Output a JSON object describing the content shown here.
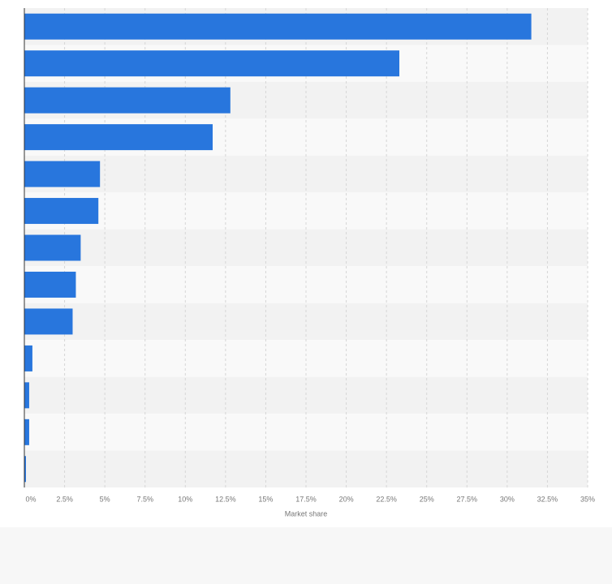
{
  "chart_data": {
    "type": "bar",
    "orientation": "horizontal",
    "categories": [
      null,
      null,
      null,
      null,
      null,
      null,
      null,
      null,
      null,
      null,
      null,
      null,
      null
    ],
    "values": [
      31.5,
      23.3,
      12.8,
      11.7,
      4.7,
      4.6,
      3.5,
      3.2,
      3.0,
      0.5,
      0.3,
      0.3,
      0.1
    ],
    "color": "#2876dd",
    "xlabel": "Market share",
    "xlim": [
      0,
      35
    ],
    "xticks": [
      {
        "value": 0,
        "label": "0%"
      },
      {
        "value": 2.5,
        "label": "2.5%"
      },
      {
        "value": 5,
        "label": "5%"
      },
      {
        "value": 7.5,
        "label": "7.5%"
      },
      {
        "value": 10,
        "label": "10%"
      },
      {
        "value": 12.5,
        "label": "12.5%"
      },
      {
        "value": 15,
        "label": "15%"
      },
      {
        "value": 17.5,
        "label": "17.5%"
      },
      {
        "value": 20,
        "label": "20%"
      },
      {
        "value": 22.5,
        "label": "22.5%"
      },
      {
        "value": 25,
        "label": "25%"
      },
      {
        "value": 27.5,
        "label": "27.5%"
      },
      {
        "value": 30,
        "label": "30%"
      },
      {
        "value": 32.5,
        "label": "32.5%"
      },
      {
        "value": 35,
        "label": "35%"
      }
    ],
    "grid": true
  }
}
